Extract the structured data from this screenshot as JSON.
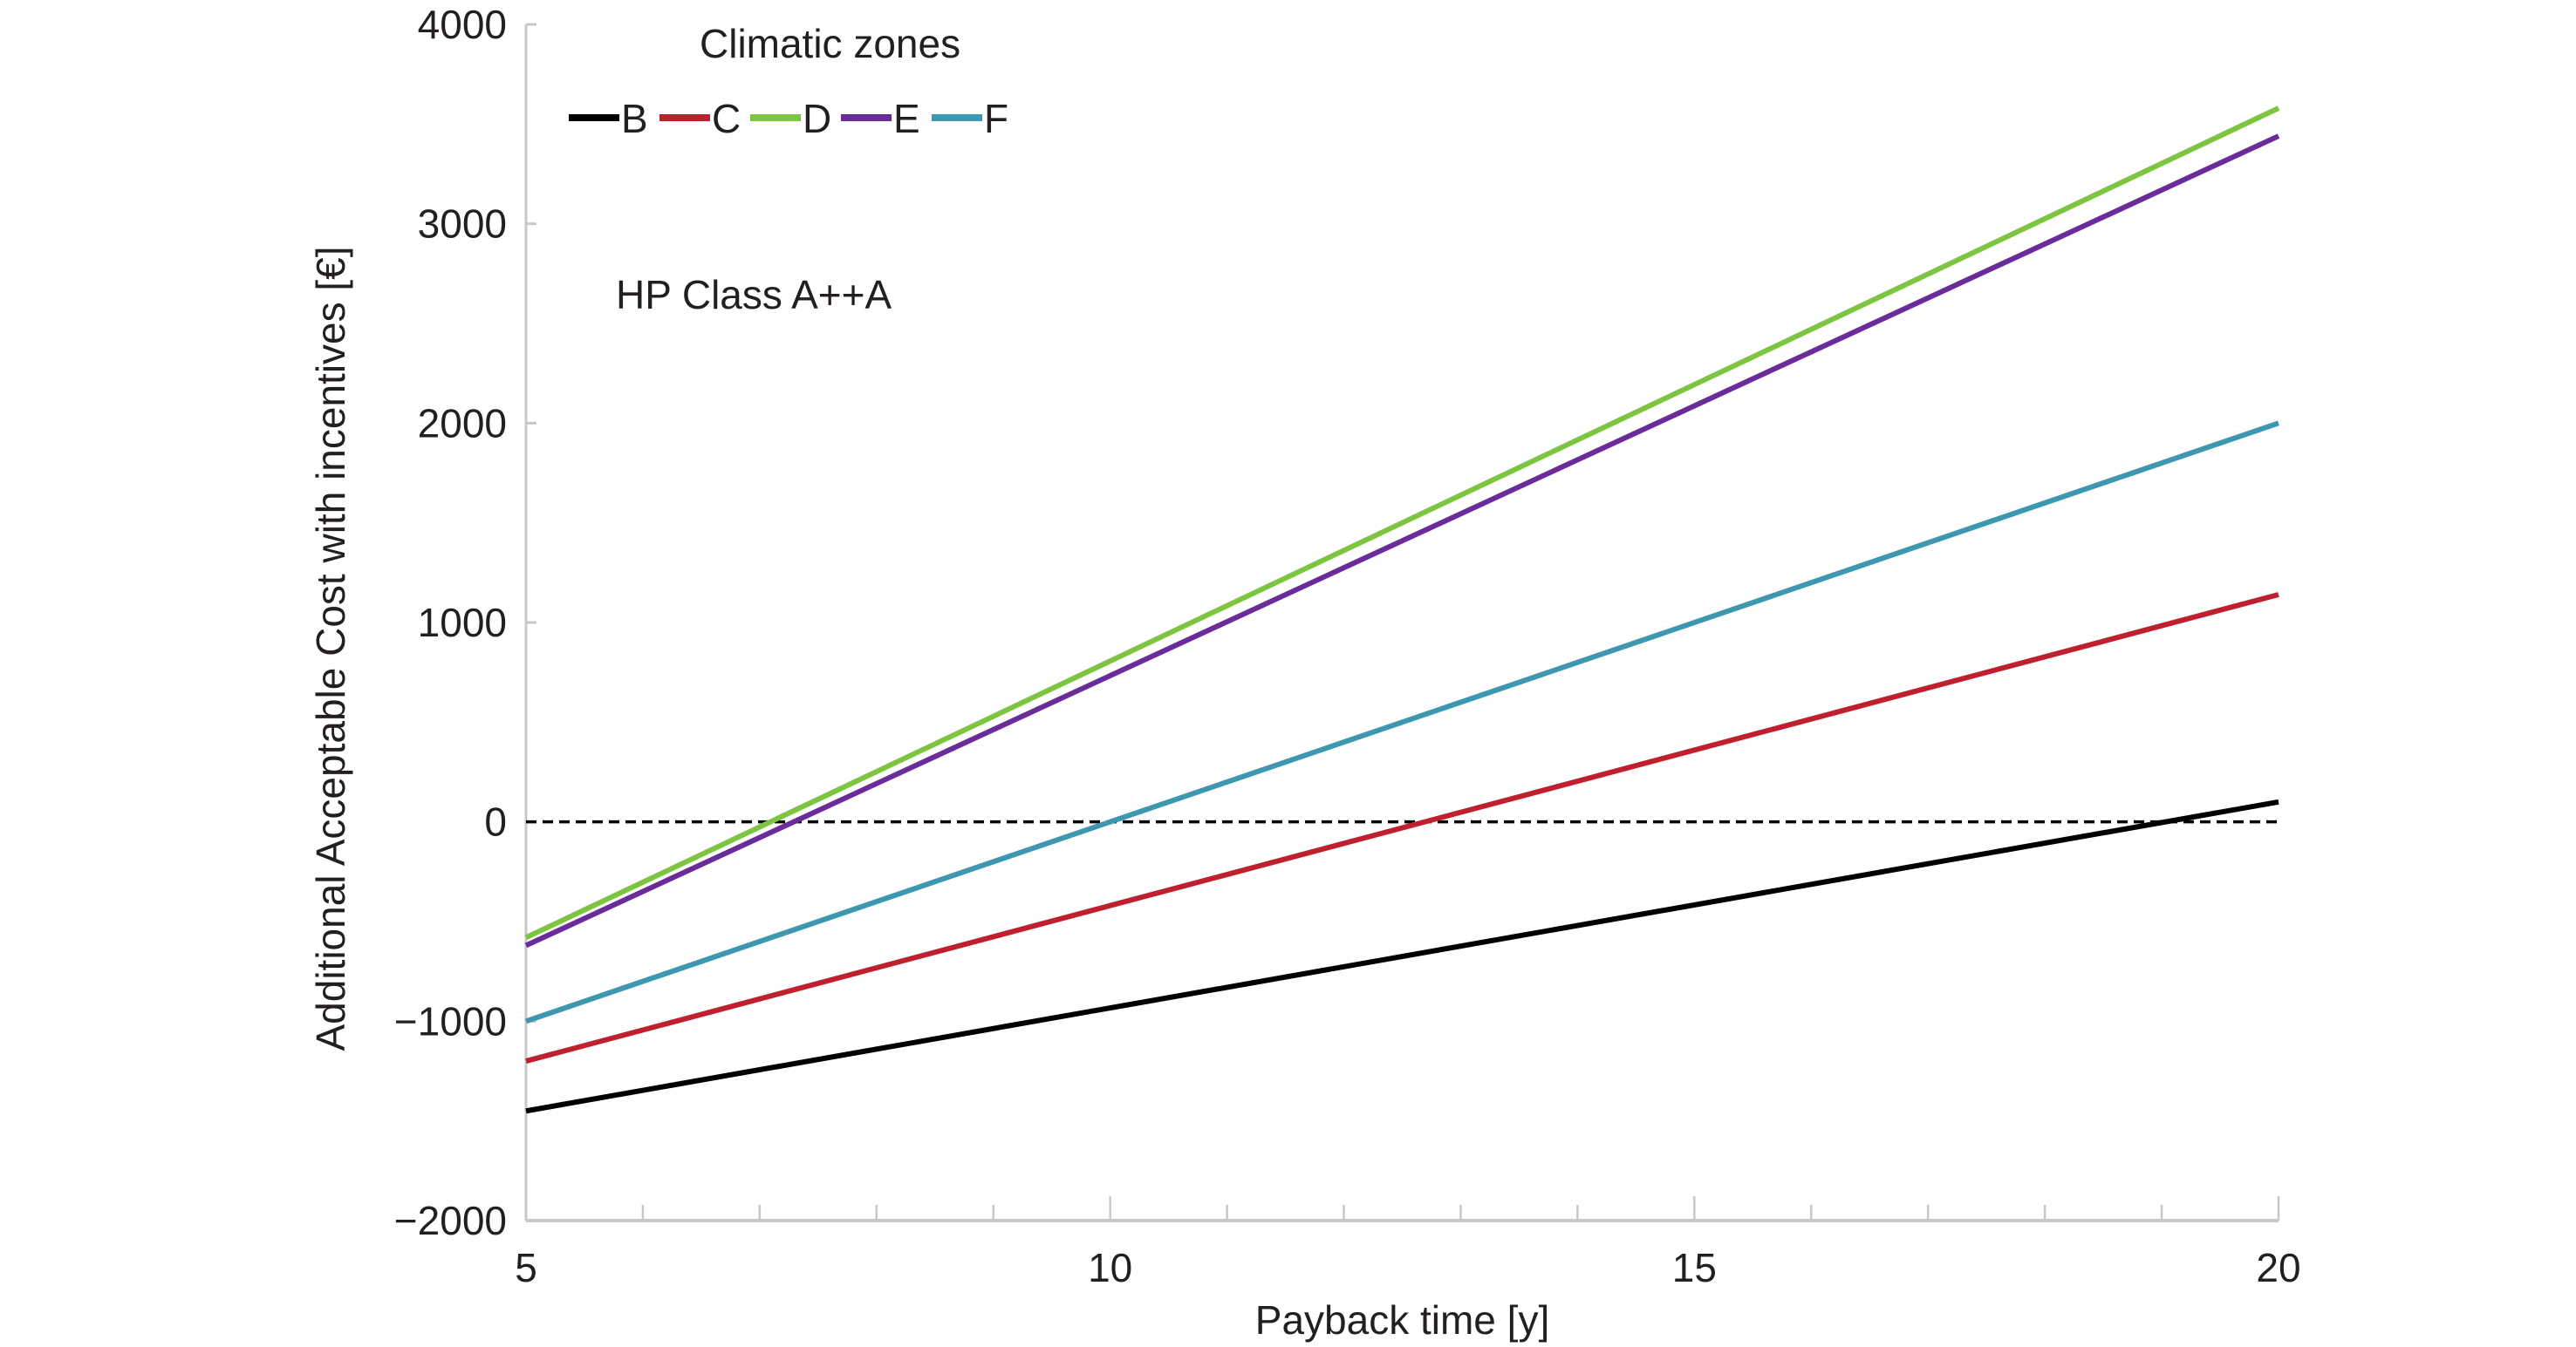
{
  "chart_data": {
    "type": "line",
    "title": "",
    "xlabel": "Payback time [y]",
    "ylabel": "Additional Acceptable Cost with incentives [€]",
    "xlim": [
      5,
      20
    ],
    "ylim": [
      -2000,
      4000
    ],
    "x_ticks": [
      5,
      10,
      15,
      20
    ],
    "x_tick_labels": [
      "5",
      "10",
      "15",
      "20"
    ],
    "x_minor_step": 1,
    "y_ticks": [
      -2000,
      -1000,
      0,
      1000,
      2000,
      3000,
      4000
    ],
    "y_tick_labels": [
      "−2000",
      "−1000",
      "0",
      "1000",
      "2000",
      "3000",
      "4000"
    ],
    "grid": false,
    "legend": {
      "title": "Climatic zones",
      "placement": "top-left",
      "orientation": "horizontal"
    },
    "annotations": [
      {
        "text": "HP Class A++A"
      }
    ],
    "reference_line": {
      "y": 0,
      "style": "dashed",
      "color": "#000000"
    },
    "series": [
      {
        "name": "B",
        "color": "#000000",
        "x": [
          5,
          20
        ],
        "y": [
          -1450,
          100
        ]
      },
      {
        "name": "C",
        "color": "#c0202e",
        "x": [
          5,
          20
        ],
        "y": [
          -1200,
          1140
        ]
      },
      {
        "name": "D",
        "color": "#7dc540",
        "x": [
          5,
          20
        ],
        "y": [
          -580,
          3580
        ]
      },
      {
        "name": "E",
        "color": "#6a2c9a",
        "x": [
          5,
          20
        ],
        "y": [
          -620,
          3440
        ]
      },
      {
        "name": "F",
        "color": "#3e97b0",
        "x": [
          5,
          20
        ],
        "y": [
          -1000,
          2000
        ]
      }
    ]
  }
}
